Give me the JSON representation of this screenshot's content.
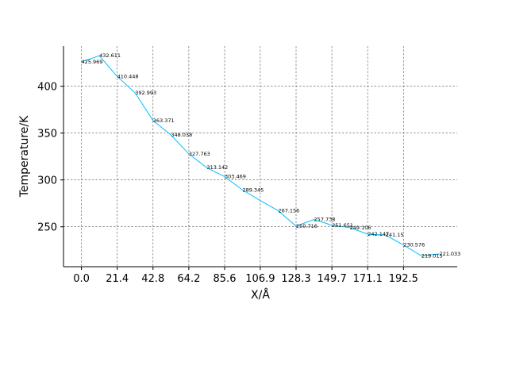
{
  "chart_data": {
    "type": "line",
    "title": "",
    "xlabel": "X/Å",
    "ylabel": "Temperature/K",
    "x": [
      0.0,
      10.7,
      21.4,
      32.1,
      42.8,
      53.5,
      64.2,
      74.9,
      85.6,
      96.25,
      106.9,
      117.6,
      128.3,
      139.0,
      149.7,
      160.4,
      171.1,
      181.8,
      192.5,
      203.2,
      213.9
    ],
    "y": [
      425.969,
      432.611,
      410.448,
      392.993,
      363.371,
      348.038,
      327.763,
      313.142,
      303.469,
      289.345,
      278.0,
      267.156,
      250.716,
      257.738,
      251.651,
      249.106,
      242.147,
      241.15,
      230.576,
      219.015,
      221.033
    ],
    "data_labels": [
      "425.969",
      "432.611",
      "410.448",
      "392.993",
      "363.371",
      "348.038",
      "327.763",
      "313.142",
      "303.469",
      "289.345",
      "",
      "267.156",
      "250.716",
      "257.738",
      "251.651",
      "249.106",
      "242.147",
      "241.15",
      "230.576",
      "219.015",
      "221.033"
    ],
    "x_ticks": [
      "0.0",
      "21.4",
      "42.8",
      "64.2",
      "85.6",
      "106.9",
      "128.3",
      "149.7",
      "171.1",
      "192.5"
    ],
    "y_ticks": [
      "250",
      "300",
      "350",
      "400"
    ],
    "xlim": [
      -10.7,
      224.6
    ],
    "ylim": [
      207.4,
      442.9
    ],
    "grid": true,
    "color": "#00bfff"
  }
}
